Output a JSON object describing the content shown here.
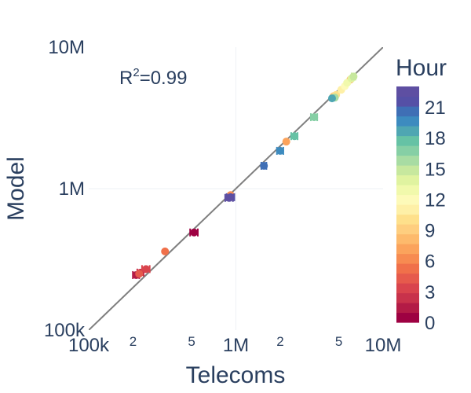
{
  "chart_data": {
    "type": "scatter",
    "xlabel": "Telecoms",
    "ylabel": "Model",
    "x_scale": "log",
    "y_scale": "log",
    "xlim": [
      100000,
      10000000
    ],
    "ylim": [
      100000,
      10000000
    ],
    "grid": true,
    "x_ticks": [
      {
        "value": 100000,
        "label": "100k",
        "major": true
      },
      {
        "value": 200000,
        "label": "2",
        "major": false
      },
      {
        "value": 500000,
        "label": "5",
        "major": false
      },
      {
        "value": 1000000,
        "label": "1M",
        "major": true
      },
      {
        "value": 2000000,
        "label": "2",
        "major": false
      },
      {
        "value": 5000000,
        "label": "5",
        "major": false
      },
      {
        "value": 10000000,
        "label": "10M",
        "major": true
      }
    ],
    "y_ticks": [
      {
        "value": 100000,
        "label": "100k"
      },
      {
        "value": 1000000,
        "label": "1M"
      },
      {
        "value": 10000000,
        "label": "10M"
      }
    ],
    "annotation": {
      "prefix": "R",
      "superscript": "2",
      "suffix": "=0.99"
    },
    "fit_line": {
      "from": [
        100000,
        100000
      ],
      "to": [
        10000000,
        10000000
      ],
      "color": "#7f7f7f"
    },
    "colorbar": {
      "title": "Hour",
      "min": 0,
      "max": 23,
      "ticks": [
        0,
        3,
        6,
        9,
        12,
        15,
        18,
        21
      ],
      "colors": [
        "#9e0142",
        "#b31b46",
        "#c8324b",
        "#d9444d",
        "#e65a4c",
        "#f0704a",
        "#f78b51",
        "#fba35c",
        "#fdba6c",
        "#fece7f",
        "#fee08b",
        "#fef0a7",
        "#fdfab9",
        "#f1f9ac",
        "#e0f3a0",
        "#c7e89e",
        "#a8dca3",
        "#86cfa5",
        "#66c2a5",
        "#4fa6b2",
        "#3d8bbf",
        "#3f6fb5",
        "#5550a6",
        "#5e4fa2"
      ]
    },
    "points": [
      {
        "hour": 0,
        "x": 520000,
        "y": 490000,
        "xerr": 0.03
      },
      {
        "hour": 1,
        "x": 210000,
        "y": 245000,
        "xerr": 0.025
      },
      {
        "hour": 2,
        "x": 225000,
        "y": 255000,
        "xerr": 0.025
      },
      {
        "hour": 3,
        "x": 245000,
        "y": 270000,
        "xerr": 0.03
      },
      {
        "hour": 4,
        "x": 220000,
        "y": 250000,
        "xerr": 0.0
      },
      {
        "hour": 5,
        "x": 330000,
        "y": 360000,
        "xerr": 0.0
      },
      {
        "hour": 6,
        "x": 920000,
        "y": 900000,
        "xerr": 0.0
      },
      {
        "hour": 7,
        "x": 2200000,
        "y": 2150000,
        "xerr": 0.0
      },
      {
        "hour": 8,
        "x": 6000000,
        "y": 5900000,
        "xerr": 0.0
      },
      {
        "hour": 9,
        "x": 4600000,
        "y": 4500000,
        "xerr": 0.0
      },
      {
        "hour": 10,
        "x": 4800000,
        "y": 4600000,
        "xerr": 0.0
      },
      {
        "hour": 11,
        "x": 5200000,
        "y": 5000000,
        "xerr": 0.0
      },
      {
        "hour": 12,
        "x": 5500000,
        "y": 5300000,
        "xerr": 0.0
      },
      {
        "hour": 13,
        "x": 5700000,
        "y": 5600000,
        "xerr": 0.0
      },
      {
        "hour": 14,
        "x": 6100000,
        "y": 6000000,
        "xerr": 0.0
      },
      {
        "hour": 15,
        "x": 6300000,
        "y": 6200000,
        "xerr": 0.015
      },
      {
        "hour": 16,
        "x": 4700000,
        "y": 4400000,
        "xerr": 0.0
      },
      {
        "hour": 17,
        "x": 3400000,
        "y": 3200000,
        "xerr": 0.025
      },
      {
        "hour": 18,
        "x": 2500000,
        "y": 2350000,
        "xerr": 0.025
      },
      {
        "hour": 19,
        "x": 4500000,
        "y": 4350000,
        "xerr": 0.0
      },
      {
        "hour": 20,
        "x": 2000000,
        "y": 1850000,
        "xerr": 0.025
      },
      {
        "hour": 21,
        "x": 1550000,
        "y": 1450000,
        "xerr": 0.02
      },
      {
        "hour": 22,
        "x": 920000,
        "y": 870000,
        "xerr": 0.03
      },
      {
        "hour": 23,
        "x": 900000,
        "y": 860000,
        "xerr": 0.03
      }
    ]
  }
}
